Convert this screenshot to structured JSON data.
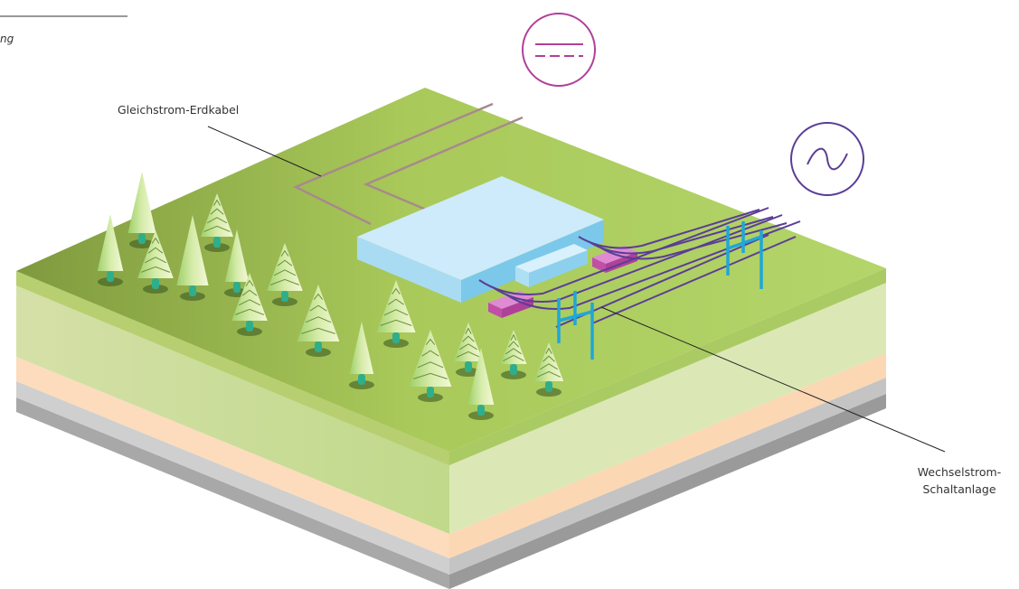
{
  "header": {
    "caption": "ng"
  },
  "labels": {
    "dc_cable": "Gleichstrom-Erdkabel",
    "ac_switchgear": [
      "Wechselstrom-",
      "Schaltanlage"
    ]
  }
}
